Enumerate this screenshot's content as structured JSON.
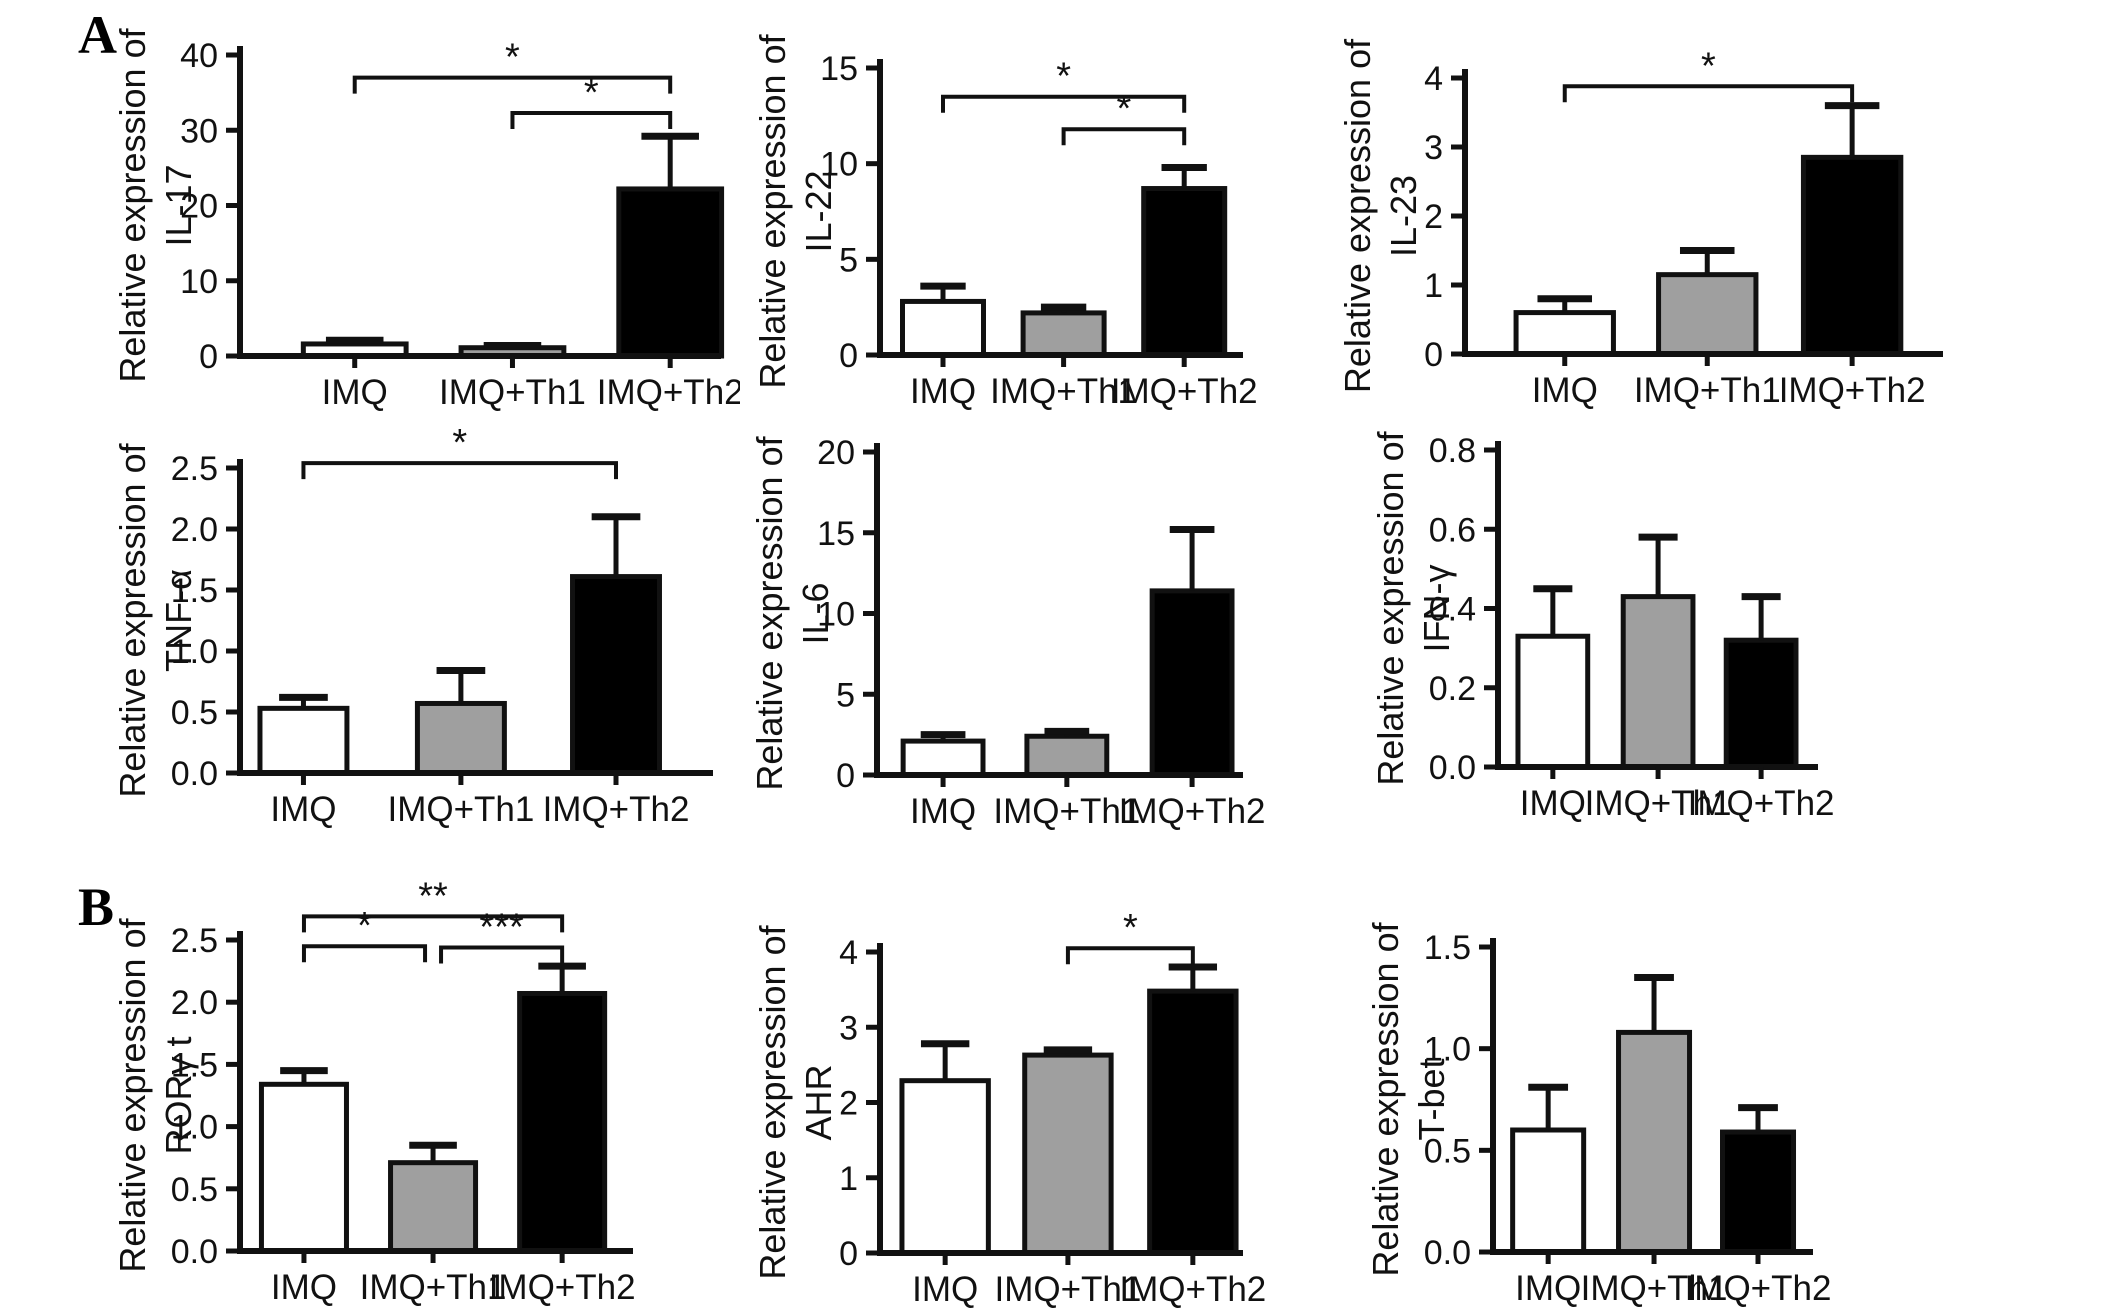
{
  "figure": {
    "panel_a_label": "A",
    "panel_b_label": "B",
    "background_color": "#ffffff",
    "ink_color": "#111111"
  },
  "bar_style": {
    "fill_colors": [
      "#ffffff",
      "#9f9f9f",
      "#000000"
    ],
    "border_color": "#111111"
  },
  "chart_data": [
    {
      "id": "il17",
      "type": "bar",
      "panel": "A",
      "ylabel_line1": "Relative expression of",
      "ylabel_line2": "IL-17",
      "categories": [
        "IMQ",
        "IMQ+Th1",
        "IMQ+Th2"
      ],
      "values": [
        1.6,
        1.1,
        22.2
      ],
      "errors_upper": [
        0.5,
        0.3,
        7.0
      ],
      "ylim": [
        0,
        40
      ],
      "yticks": [
        0,
        10,
        20,
        30,
        40
      ],
      "ytick_decimals": 0,
      "grid": false,
      "legend": "none",
      "significance": [
        {
          "from": 0,
          "to": 2,
          "label": "*",
          "y": 37.0
        },
        {
          "from": 1,
          "to": 2,
          "label": "*",
          "y": 32.3
        }
      ],
      "layout": {
        "cell": [
          60,
          0,
          680,
          412
        ],
        "plot": [
          180,
          55,
          658,
          356
        ],
        "bar_frac": [
          0.24,
          0.57,
          0.9
        ],
        "bar_width_frac": 0.215
      }
    },
    {
      "id": "il22",
      "type": "bar",
      "panel": "A",
      "ylabel_line1": "Relative expression of",
      "ylabel_line2": "IL-22",
      "categories": [
        "IMQ",
        "IMQ+Th1",
        "IMQ+Th2"
      ],
      "values": [
        2.8,
        2.2,
        8.7
      ],
      "errors_upper": [
        0.8,
        0.3,
        1.1
      ],
      "ylim": [
        0,
        15
      ],
      "yticks": [
        0,
        5,
        10,
        15
      ],
      "ytick_decimals": 0,
      "grid": false,
      "legend": "none",
      "significance": [
        {
          "from": 0,
          "to": 2,
          "label": "*",
          "y": 13.5
        },
        {
          "from": 1,
          "to": 2,
          "label": "*",
          "y": 11.8
        }
      ],
      "layout": {
        "cell": [
          700,
          0,
          620,
          412
        ],
        "plot": [
          180,
          68,
          540,
          355
        ],
        "bar_frac": [
          0.175,
          0.51,
          0.845
        ],
        "bar_width_frac": 0.225
      }
    },
    {
      "id": "il23",
      "type": "bar",
      "panel": "A",
      "ylabel_line1": "Relative expression of",
      "ylabel_line2": "IL-23",
      "categories": [
        "IMQ",
        "IMQ+Th1",
        "IMQ+Th2"
      ],
      "values": [
        0.6,
        1.15,
        2.85
      ],
      "errors_upper": [
        0.2,
        0.35,
        0.75
      ],
      "ylim": [
        0,
        4
      ],
      "yticks": [
        0,
        1,
        2,
        3,
        4
      ],
      "ytick_decimals": 0,
      "grid": false,
      "legend": "none",
      "significance": [
        {
          "from": 0,
          "to": 2,
          "label": "*",
          "y": 3.88
        }
      ],
      "layout": {
        "cell": [
          1285,
          0,
          760,
          412
        ],
        "plot": [
          180,
          78,
          655,
          354
        ],
        "bar_frac": [
          0.21,
          0.51,
          0.815
        ],
        "bar_width_frac": 0.205
      }
    },
    {
      "id": "tnfa",
      "type": "bar",
      "panel": "A",
      "ylabel_line1": "Relative expression of",
      "ylabel_line2": "TNF-α",
      "categories": [
        "IMQ",
        "IMQ+Th1",
        "IMQ+Th2"
      ],
      "values": [
        0.53,
        0.57,
        1.61
      ],
      "errors_upper": [
        0.09,
        0.27,
        0.49
      ],
      "ylim": [
        0,
        2.5
      ],
      "yticks": [
        0,
        0.5,
        1,
        1.5,
        2,
        2.5
      ],
      "ytick_decimals": 1,
      "grid": false,
      "legend": "none",
      "significance": [
        {
          "from": 0,
          "to": 2,
          "label": "*",
          "y": 2.54
        }
      ],
      "layout": {
        "cell": [
          60,
          418,
          680,
          430
        ],
        "plot": [
          180,
          50,
          650,
          355
        ],
        "bar_frac": [
          0.135,
          0.47,
          0.8
        ],
        "bar_width_frac": 0.185
      }
    },
    {
      "id": "il6",
      "type": "bar",
      "panel": "A",
      "ylabel_line1": "Relative expression of",
      "ylabel_line2": "IL-6",
      "categories": [
        "IMQ",
        "IMQ+Th1",
        "IMQ+Th2"
      ],
      "values": [
        2.1,
        2.4,
        11.4
      ],
      "errors_upper": [
        0.4,
        0.3,
        3.8
      ],
      "ylim": [
        0,
        20
      ],
      "yticks": [
        0,
        5,
        10,
        15,
        20
      ],
      "ytick_decimals": 0,
      "grid": false,
      "legend": "none",
      "significance": [],
      "layout": {
        "cell": [
          697,
          418,
          620,
          430
        ],
        "plot": [
          180,
          34,
          543,
          357
        ],
        "bar_frac": [
          0.182,
          0.523,
          0.868
        ],
        "bar_width_frac": 0.22
      }
    },
    {
      "id": "ifng",
      "type": "bar",
      "panel": "A",
      "ylabel_line1": "Relative expression of",
      "ylabel_line2": "IFN-γ",
      "categories": [
        "IMQ",
        "IMQ+Th1",
        "IMQ+Th2"
      ],
      "values": [
        0.33,
        0.43,
        0.32
      ],
      "errors_upper": [
        0.12,
        0.15,
        0.11
      ],
      "ylim": [
        0,
        0.8
      ],
      "yticks": [
        0,
        0.2,
        0.4,
        0.6,
        0.8
      ],
      "ytick_decimals": 1,
      "grid": false,
      "legend": "none",
      "significance": [],
      "layout": {
        "cell": [
          1318,
          418,
          620,
          430
        ],
        "plot": [
          180,
          32,
          497,
          349
        ],
        "bar_frac": [
          0.173,
          0.505,
          0.83
        ],
        "bar_width_frac": 0.22
      }
    },
    {
      "id": "rorgt",
      "type": "bar",
      "panel": "B",
      "ylabel_line1": "Relative expression of",
      "ylabel_line2": "RORγ t",
      "categories": [
        "IMQ",
        "IMQ+Th1",
        "IMQ+Th2"
      ],
      "values": [
        1.34,
        0.71,
        2.07
      ],
      "errors_upper": [
        0.11,
        0.14,
        0.22
      ],
      "ylim": [
        0,
        2.5
      ],
      "yticks": [
        0,
        0.5,
        1,
        1.5,
        2,
        2.5
      ],
      "ytick_decimals": 1,
      "grid": false,
      "legend": "none",
      "significance": [
        {
          "from": 0,
          "to": 2,
          "label": "**",
          "y": 2.69
        },
        {
          "from": 0,
          "to": 1,
          "label": "*",
          "y": 2.45,
          "off2": -8
        },
        {
          "from": 1,
          "to": 2,
          "label": "***",
          "y": 2.44,
          "off1": 8
        }
      ],
      "layout": {
        "cell": [
          60,
          876,
          680,
          438
        ],
        "plot": [
          180,
          64,
          570,
          375
        ],
        "bar_frac": [
          0.164,
          0.495,
          0.826
        ],
        "bar_width_frac": 0.218
      }
    },
    {
      "id": "ahr",
      "type": "bar",
      "panel": "B",
      "ylabel_line1": "Relative expression of",
      "ylabel_line2": "AHR",
      "categories": [
        "IMQ",
        "IMQ+Th1",
        "IMQ+Th2"
      ],
      "values": [
        2.29,
        2.63,
        3.48
      ],
      "errors_upper": [
        0.49,
        0.07,
        0.32
      ],
      "ylim": [
        0,
        4
      ],
      "yticks": [
        0,
        1,
        2,
        3,
        4
      ],
      "ytick_decimals": 0,
      "grid": false,
      "legend": "none",
      "significance": [
        {
          "from": 1,
          "to": 2,
          "label": "*",
          "y": 4.05
        }
      ],
      "layout": {
        "cell": [
          700,
          876,
          620,
          438
        ],
        "plot": [
          180,
          76,
          540,
          377
        ],
        "bar_frac": [
          0.181,
          0.522,
          0.869
        ],
        "bar_width_frac": 0.24
      }
    },
    {
      "id": "tbet",
      "type": "bar",
      "panel": "B",
      "ylabel_line1": "Relative expression of",
      "ylabel_line2": "T-bet",
      "categories": [
        "IMQ",
        "IMQ+Th1",
        "IMQ+Th2"
      ],
      "values": [
        0.6,
        1.08,
        0.59
      ],
      "errors_upper": [
        0.21,
        0.27,
        0.12
      ],
      "ylim": [
        0,
        1.5
      ],
      "yticks": [
        0,
        0.5,
        1,
        1.5
      ],
      "ytick_decimals": 1,
      "grid": false,
      "legend": "none",
      "significance": [],
      "layout": {
        "cell": [
          1313,
          876,
          620,
          438
        ],
        "plot": [
          180,
          71,
          497,
          376
        ],
        "bar_frac": [
          0.174,
          0.508,
          0.836
        ],
        "bar_width_frac": 0.224
      }
    }
  ]
}
